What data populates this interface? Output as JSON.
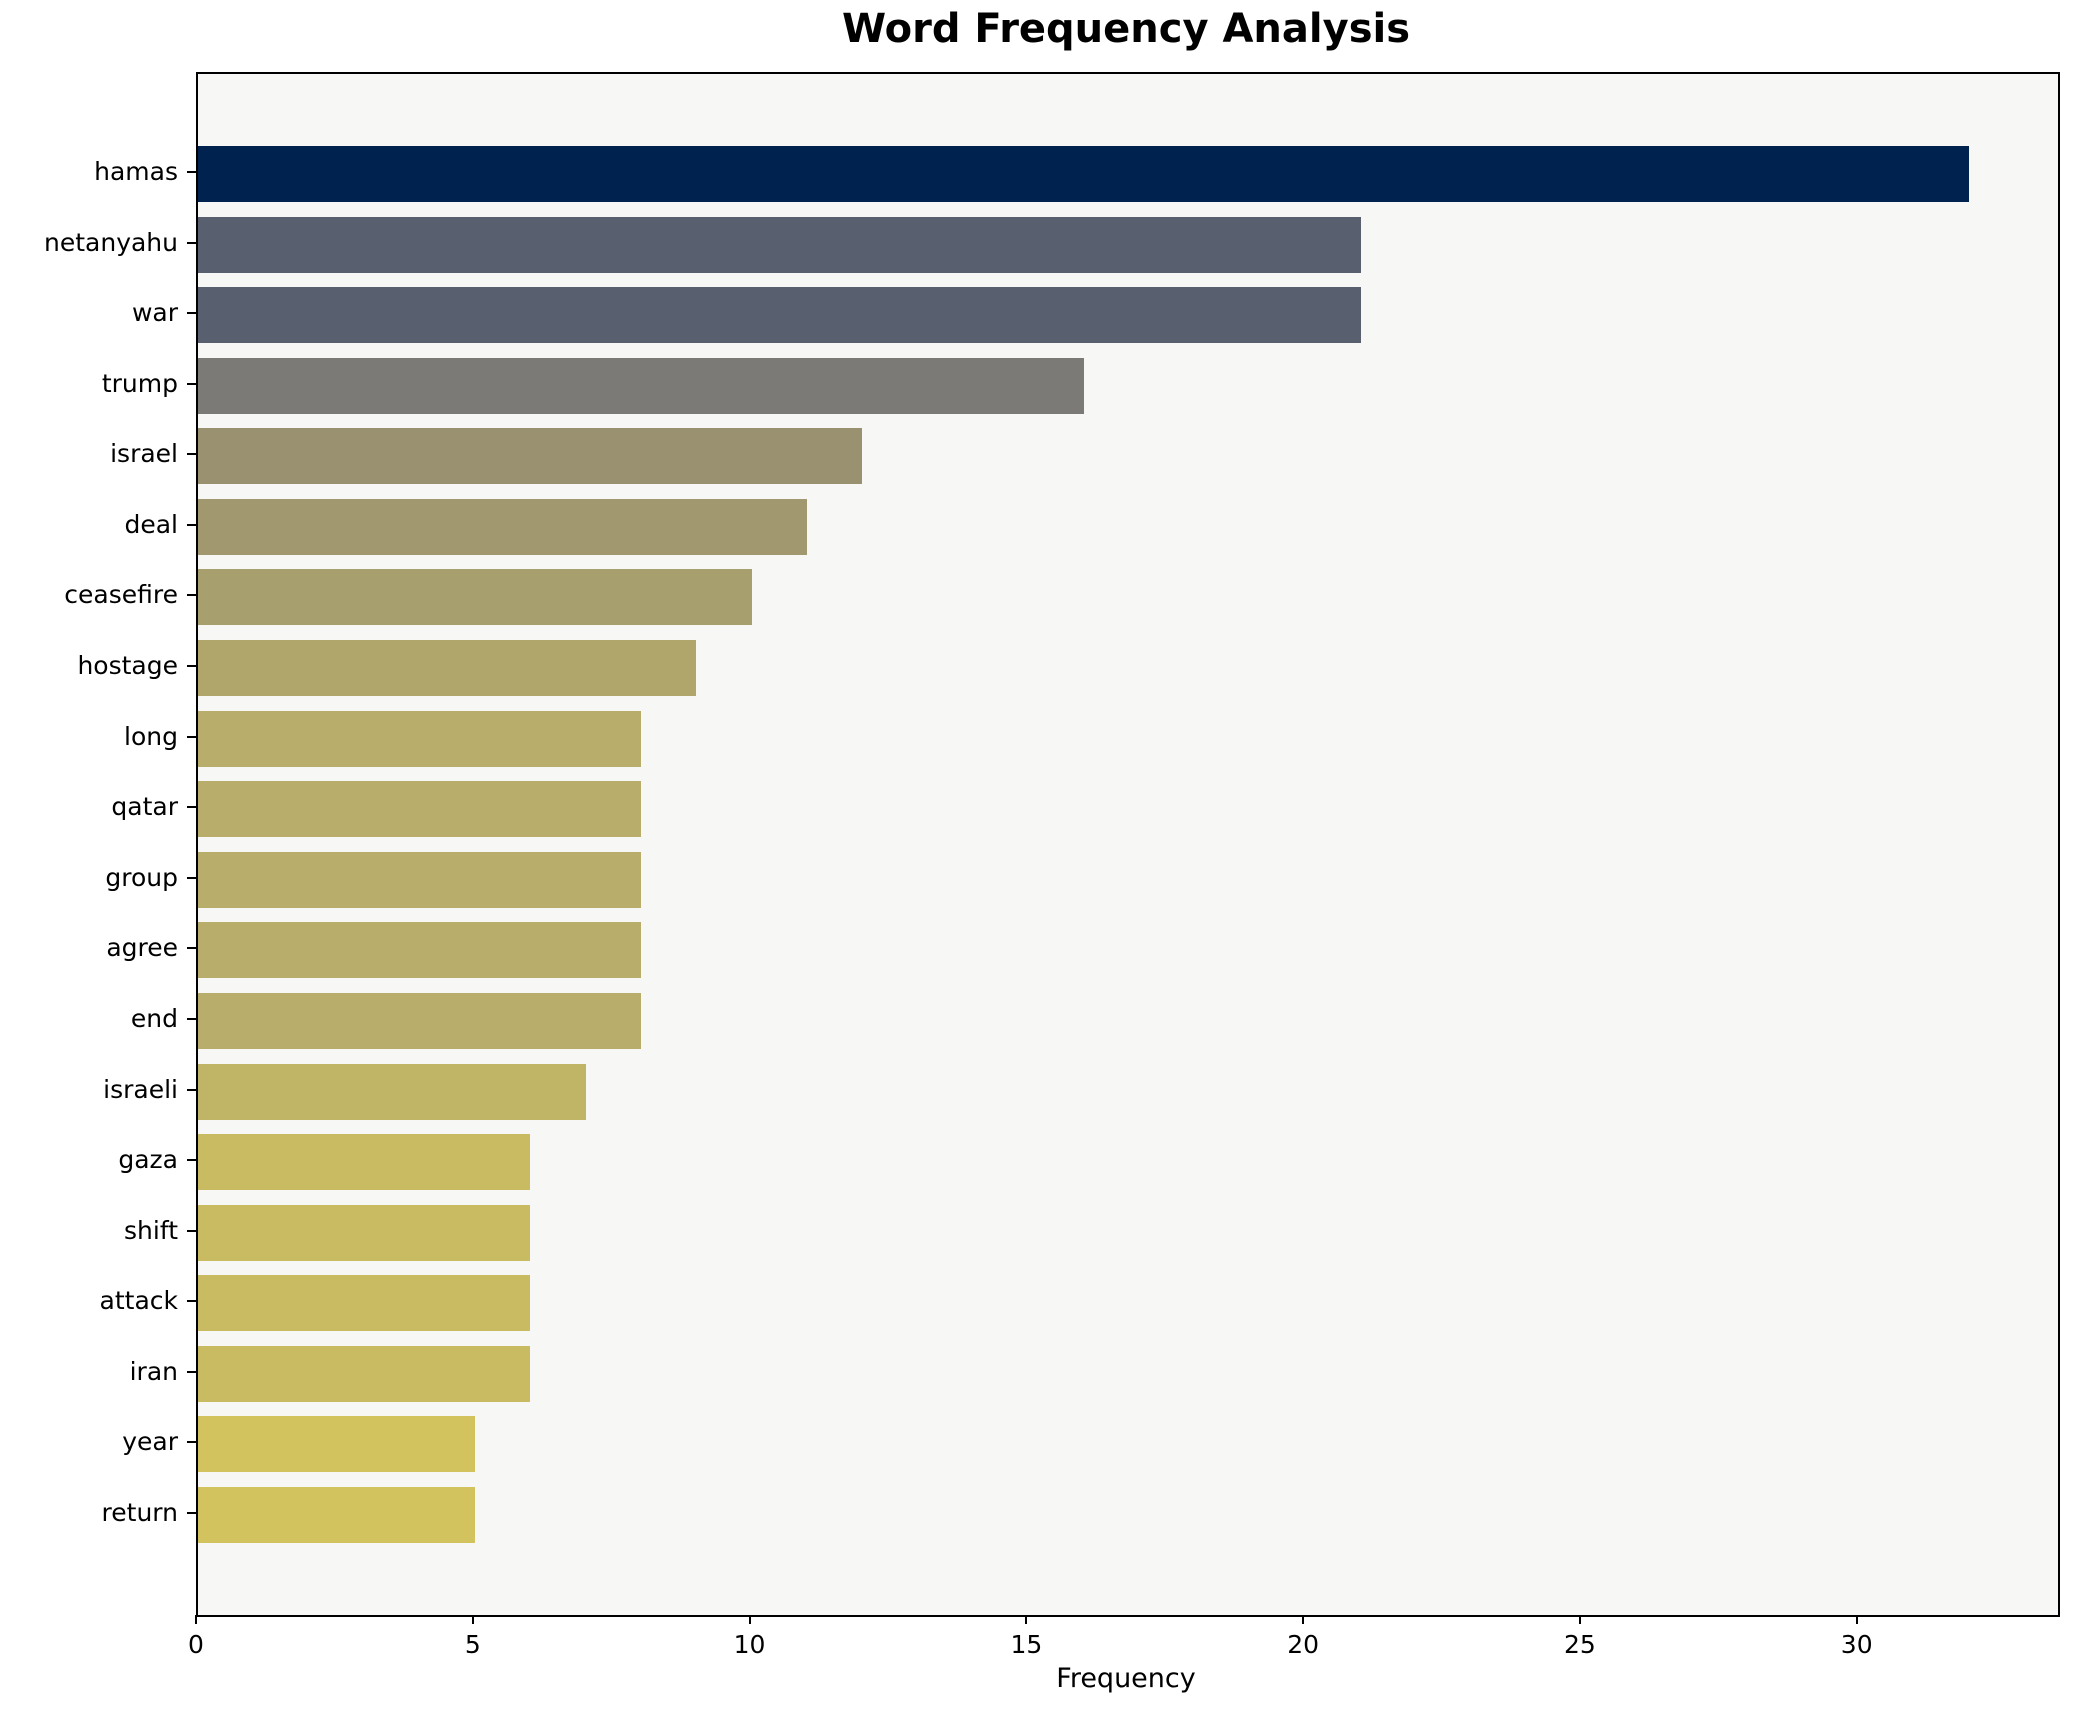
{
  "title": "Word Frequency Analysis",
  "axes": {
    "xlabel": "Frequency",
    "x_tick_labels": [
      "0",
      "5",
      "10",
      "15",
      "20",
      "25",
      "30"
    ]
  },
  "colors": {
    "plot_background": "#f7f7f5",
    "page_background": "#ffffff",
    "axis_line": "#000000",
    "text": "#000000",
    "bar_darkest": "#00224e",
    "bar_lightest": "#d2c35e"
  },
  "chart_data": {
    "type": "bar",
    "orientation": "horizontal",
    "title": "Word Frequency Analysis",
    "xlabel": "Frequency",
    "ylabel": "",
    "categories": [
      "hamas",
      "netanyahu",
      "war",
      "trump",
      "israel",
      "deal",
      "ceasefire",
      "hostage",
      "long",
      "qatar",
      "group",
      "agree",
      "end",
      "israeli",
      "gaza",
      "shift",
      "attack",
      "iran",
      "year",
      "return"
    ],
    "values": [
      32,
      21,
      21,
      16,
      12,
      11,
      10,
      9,
      8,
      8,
      8,
      8,
      8,
      7,
      6,
      6,
      6,
      6,
      5,
      5
    ],
    "bar_colors": [
      "#00224e",
      "#585f6e",
      "#585f6e",
      "#7b7a77",
      "#999170",
      "#a1986f",
      "#a89f6e",
      "#b0a66c",
      "#b8ad6a",
      "#b8ad6a",
      "#b8ad6a",
      "#b8ad6a",
      "#b8ad6a",
      "#c0b466",
      "#c9bb62",
      "#c9bb62",
      "#c9bb62",
      "#c9bb62",
      "#d2c35e",
      "#d2c35e"
    ],
    "xlim": [
      0,
      33.6
    ],
    "xticks": [
      0,
      5,
      10,
      15,
      20,
      25,
      30
    ],
    "grid": false,
    "legend": false,
    "colormap": "cividis-reversed-by-value"
  }
}
